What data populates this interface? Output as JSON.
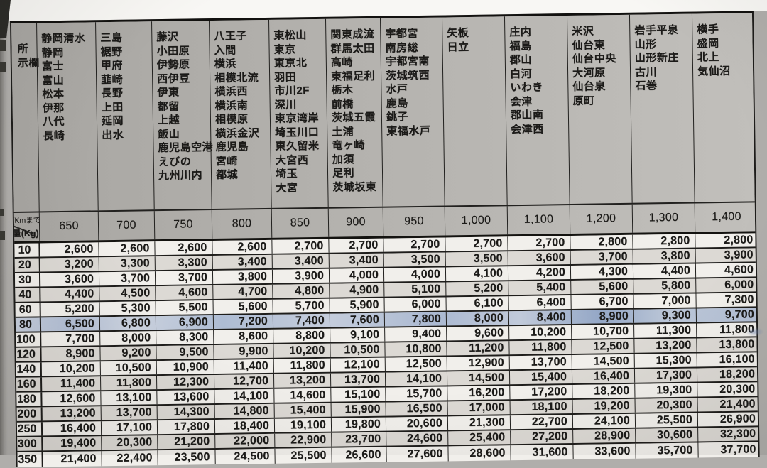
{
  "header": {
    "corner_lines": [
      "所",
      "示欄"
    ]
  },
  "axis": {
    "km_label": "(Kmまで)",
    "kg_label": "量(Kg)"
  },
  "highlight": {
    "row_weight": "80",
    "marker_color": "#aebcd3"
  },
  "columns": [
    {
      "distance": "650",
      "cities": [
        "静岡清水",
        "静岡",
        "富士",
        "富山",
        "松本",
        "伊那",
        "八代",
        "長崎"
      ]
    },
    {
      "distance": "700",
      "cities": [
        "三島",
        "裾野",
        "甲府",
        "韮崎",
        "長野",
        "上田",
        "延岡",
        "出水"
      ]
    },
    {
      "distance": "750",
      "cities": [
        "藤沢",
        "小田原",
        "伊勢原",
        "西伊豆",
        "伊東",
        "都留",
        "上越",
        "飯山",
        "鹿児島空港",
        "えびの",
        "九州川内"
      ]
    },
    {
      "distance": "800",
      "cities": [
        "八王子",
        "入間",
        "横浜",
        "相模北流",
        "横浜西",
        "横浜南",
        "相模原",
        "横浜金沢",
        "鹿児島",
        "宮崎",
        "都城"
      ]
    },
    {
      "distance": "850",
      "cities": [
        "東松山",
        "東京",
        "東京北",
        "羽田",
        "市川2F",
        "深川",
        "東京湾岸",
        "埼玉川口",
        "東久留米",
        "大宮西",
        "埼玉",
        "大宮"
      ]
    },
    {
      "distance": "900",
      "cities": [
        "関東成流",
        "群馬太田",
        "高崎",
        "東福足利",
        "栃木",
        "前橋",
        "茨城五霞",
        "土浦",
        "竜ヶ崎",
        "加須",
        "足利",
        "茨城坂東"
      ]
    },
    {
      "distance": "950",
      "cities": [
        "宇都宮",
        "南房総",
        "宇都宮南",
        "茨城筑西",
        "水戸",
        "鹿島",
        "銚子",
        "東福水戸"
      ]
    },
    {
      "distance": "1,000",
      "cities": [
        "矢板",
        "日立"
      ]
    },
    {
      "distance": "1,100",
      "cities": [
        "庄内",
        "福島",
        "郡山",
        "白河",
        "いわき",
        "会津",
        "郡山南",
        "会津西"
      ]
    },
    {
      "distance": "1,200",
      "cities": [
        "米沢",
        "仙台東",
        "仙台中央",
        "大河原",
        "仙台泉",
        "原町"
      ]
    },
    {
      "distance": "1,300",
      "cities": [
        "岩手平泉",
        "山形",
        "山形新庄",
        "古川",
        "石巻"
      ]
    },
    {
      "distance": "1,400",
      "cities": [
        "横手",
        "盛岡",
        "北上",
        "気仙沼"
      ]
    }
  ],
  "rows": [
    {
      "weight": "10",
      "values": [
        "2,600",
        "2,600",
        "2,600",
        "2,600",
        "2,700",
        "2,700",
        "2,700",
        "2,700",
        "2,700",
        "2,800",
        "2,800",
        "2,800"
      ]
    },
    {
      "weight": "20",
      "values": [
        "3,200",
        "3,300",
        "3,300",
        "3,400",
        "3,400",
        "3,400",
        "3,500",
        "3,500",
        "3,600",
        "3,700",
        "3,800",
        "3,900"
      ]
    },
    {
      "weight": "30",
      "values": [
        "3,600",
        "3,700",
        "3,700",
        "3,800",
        "3,900",
        "4,000",
        "4,000",
        "4,100",
        "4,200",
        "4,300",
        "4,400",
        "4,600"
      ]
    },
    {
      "weight": "40",
      "values": [
        "4,400",
        "4,500",
        "4,600",
        "4,700",
        "4,800",
        "4,900",
        "5,100",
        "5,200",
        "5,400",
        "5,600",
        "5,800",
        "6,000"
      ]
    },
    {
      "weight": "60",
      "values": [
        "5,200",
        "5,300",
        "5,500",
        "5,600",
        "5,700",
        "5,900",
        "6,000",
        "6,100",
        "6,400",
        "6,700",
        "7,000",
        "7,300"
      ]
    },
    {
      "weight": "80",
      "values": [
        "6,500",
        "6,800",
        "6,900",
        "7,200",
        "7,400",
        "7,600",
        "7,800",
        "8,000",
        "8,400",
        "8,900",
        "9,300",
        "9,700"
      ]
    },
    {
      "weight": "100",
      "values": [
        "7,700",
        "8,000",
        "8,300",
        "8,600",
        "8,800",
        "9,100",
        "9,400",
        "9,600",
        "10,200",
        "10,700",
        "11,300",
        "11,800"
      ]
    },
    {
      "weight": "120",
      "values": [
        "8,900",
        "9,200",
        "9,500",
        "9,900",
        "10,200",
        "10,500",
        "10,800",
        "11,200",
        "11,800",
        "12,500",
        "13,200",
        "13,800"
      ]
    },
    {
      "weight": "140",
      "values": [
        "10,200",
        "10,500",
        "10,900",
        "11,400",
        "11,800",
        "12,100",
        "12,500",
        "12,900",
        "13,700",
        "14,500",
        "15,300",
        "16,100"
      ]
    },
    {
      "weight": "160",
      "values": [
        "11,400",
        "11,800",
        "12,300",
        "12,700",
        "13,200",
        "13,700",
        "14,100",
        "14,500",
        "15,400",
        "16,400",
        "17,300",
        "18,200"
      ]
    },
    {
      "weight": "180",
      "values": [
        "12,600",
        "13,100",
        "13,600",
        "14,100",
        "14,600",
        "15,100",
        "15,700",
        "16,200",
        "17,200",
        "18,200",
        "19,300",
        "20,300"
      ]
    },
    {
      "weight": "200",
      "values": [
        "13,200",
        "13,700",
        "14,300",
        "14,800",
        "15,400",
        "15,900",
        "16,500",
        "17,000",
        "18,100",
        "19,200",
        "20,300",
        "21,400"
      ]
    },
    {
      "weight": "250",
      "values": [
        "16,400",
        "17,100",
        "17,800",
        "18,400",
        "19,100",
        "19,800",
        "20,600",
        "21,300",
        "22,700",
        "24,100",
        "25,500",
        "26,900"
      ]
    },
    {
      "weight": "300",
      "values": [
        "19,400",
        "20,300",
        "21,200",
        "22,000",
        "22,900",
        "23,700",
        "24,600",
        "25,400",
        "27,200",
        "28,900",
        "30,600",
        "32,300"
      ]
    }
  ],
  "partial_row": {
    "weight": "350",
    "values": [
      "21,400",
      "22,400",
      "23,500",
      "24,500",
      "25,500",
      "26,600",
      "27,600",
      "28,600",
      "31,600",
      "33,600",
      "35,700",
      "37,700"
    ]
  }
}
